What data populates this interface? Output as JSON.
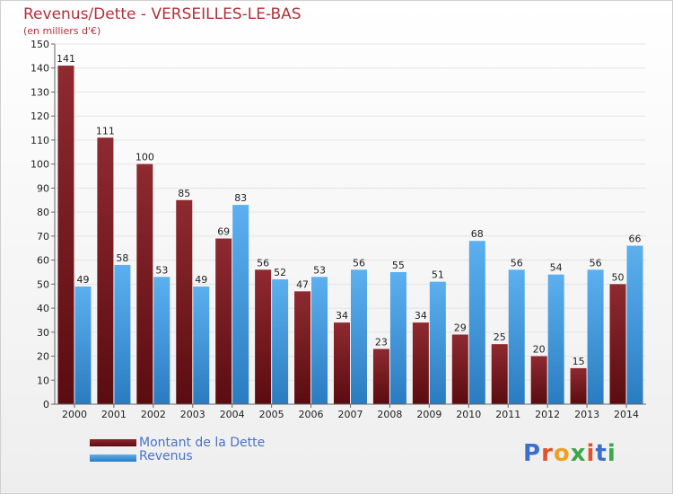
{
  "chart_data": {
    "type": "bar",
    "title": "Revenus/Dette - VERSEILLES-LE-BAS",
    "subtitle": "(en milliers d'€)",
    "categories": [
      "2000",
      "2001",
      "2002",
      "2003",
      "2004",
      "2005",
      "2006",
      "2007",
      "2008",
      "2009",
      "2010",
      "2011",
      "2012",
      "2013",
      "2014"
    ],
    "series": [
      {
        "name": "Montant de la Dette",
        "color": "#7a1a1e",
        "values": [
          141,
          111,
          100,
          85,
          69,
          56,
          47,
          34,
          23,
          34,
          29,
          25,
          20,
          15,
          50
        ]
      },
      {
        "name": "Revenus",
        "color": "#4a9ee0",
        "values": [
          49,
          58,
          53,
          49,
          83,
          52,
          53,
          56,
          55,
          51,
          68,
          56,
          54,
          56,
          66
        ]
      }
    ],
    "ylim": [
      0,
      150
    ],
    "yticks": [
      0,
      10,
      20,
      30,
      40,
      50,
      60,
      70,
      80,
      90,
      100,
      110,
      120,
      130,
      140,
      150
    ],
    "grid": true,
    "legend_position": "bottom-left"
  },
  "logo": {
    "text": "Proxiti"
  }
}
